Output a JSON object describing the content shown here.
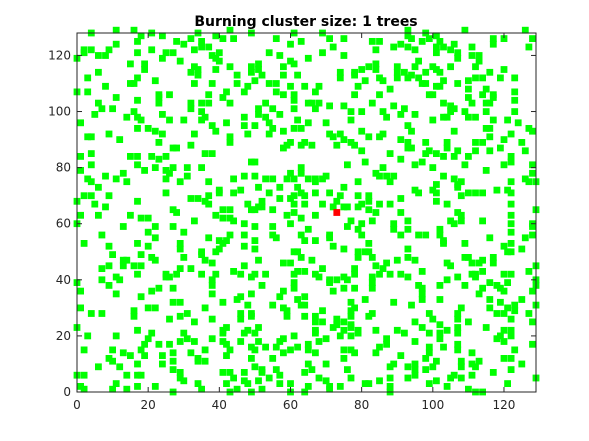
{
  "chart_data": {
    "type": "scatter",
    "title": "Burning cluster size: 1 trees",
    "xlabel": "",
    "ylabel": "",
    "xlim": [
      0,
      129
    ],
    "ylim": [
      0,
      128
    ],
    "x_ticks": [
      0,
      20,
      40,
      60,
      80,
      100,
      120
    ],
    "y_ticks": [
      0,
      20,
      40,
      60,
      80,
      100,
      120
    ],
    "x_tick_labels": [
      "0",
      "20",
      "40",
      "60",
      "80",
      "100",
      "120"
    ],
    "y_tick_labels": [
      "0",
      "20",
      "40",
      "60",
      "80",
      "100",
      "120"
    ],
    "grid": false,
    "box": true,
    "colors": {
      "tree": "#00ff00",
      "burning": "#ff0000",
      "axis": "#262626"
    },
    "marker": "square",
    "burning_cells": [
      [
        73,
        64
      ]
    ],
    "tree_density": 0.55,
    "grid_size": 128
  }
}
